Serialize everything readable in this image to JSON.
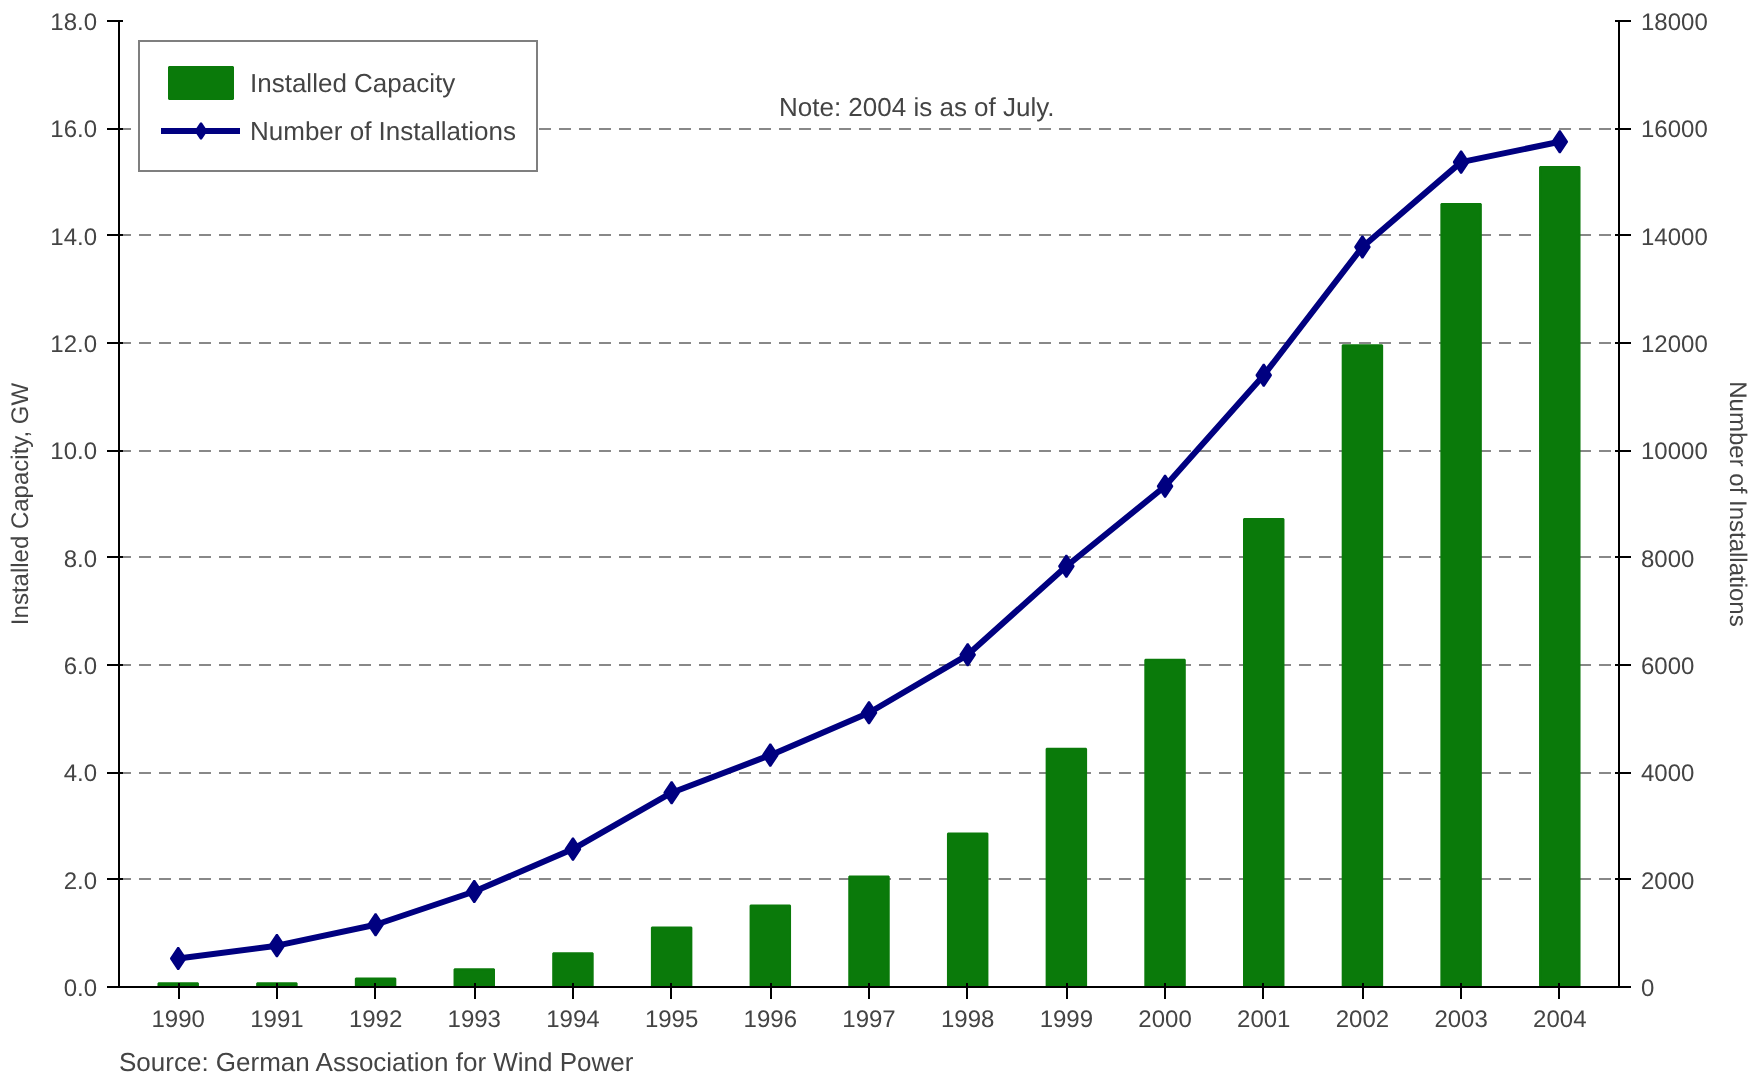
{
  "chart_data": {
    "type": "bar",
    "categories": [
      "1990",
      "1991",
      "1992",
      "1993",
      "1994",
      "1995",
      "1996",
      "1997",
      "1998",
      "1999",
      "2000",
      "2001",
      "2002",
      "2003",
      "2004"
    ],
    "ylabel": "Installed Capacity, GW",
    "y2label": "Number of Installations",
    "series": [
      {
        "name": "Installed Capacity",
        "color": "#0a7a0a",
        "values": [
          0.07,
          0.07,
          0.16,
          0.33,
          0.63,
          1.11,
          1.52,
          2.06,
          2.86,
          4.44,
          6.1,
          8.72,
          11.96,
          14.59,
          15.28
        ]
      },
      {
        "name": "Number of Installations",
        "type": "line",
        "axis": "y2",
        "color": "#000080",
        "marker": "diamond",
        "line_style": "solid",
        "values": [
          530,
          770,
          1160,
          1780,
          2570,
          3620,
          4320,
          5110,
          6190,
          7840,
          9330,
          11400,
          13790,
          15370,
          15750
        ]
      }
    ],
    "ylim": [
      0,
      18
    ],
    "yticks": [
      {
        "value": 0,
        "label": "0.0"
      },
      {
        "value": 2,
        "label": "2.0"
      },
      {
        "value": 4,
        "label": "4.0"
      },
      {
        "value": 6,
        "label": "6.0"
      },
      {
        "value": 8,
        "label": "8.0"
      },
      {
        "value": 10,
        "label": "10.0"
      },
      {
        "value": 12,
        "label": "12.0"
      },
      {
        "value": 14,
        "label": "14.0"
      },
      {
        "value": 16,
        "label": "16.0"
      },
      {
        "value": 18,
        "label": "18.0"
      }
    ],
    "y2lim": [
      0,
      18000
    ],
    "y2ticks": [
      0,
      2000,
      4000,
      6000,
      8000,
      10000,
      12000,
      14000,
      16000,
      18000
    ],
    "grid": "y",
    "legend": "top left",
    "annotations": [
      "Note: 2004 is as of July.",
      "Source: German Association for Wind Power"
    ]
  }
}
